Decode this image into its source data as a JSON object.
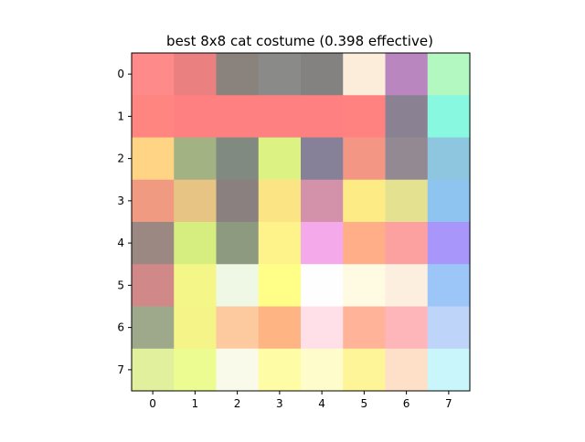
{
  "chart_data": {
    "type": "heatmap",
    "title": "best 8x8 cat costume (0.398 effective)",
    "xlabel": "",
    "ylabel": "",
    "x_ticks": [
      "0",
      "1",
      "2",
      "3",
      "4",
      "5",
      "6",
      "7"
    ],
    "y_ticks": [
      "0",
      "1",
      "2",
      "3",
      "4",
      "5",
      "6",
      "7"
    ],
    "grid": false,
    "legend": "none",
    "cells": [
      [
        "#ff8a8a",
        "#ea8080",
        "#8a827c",
        "#8a8a88",
        "#848280",
        "#fcecda",
        "#b986c0",
        "#b3f8c0"
      ],
      [
        "#ff8680",
        "#ff8080",
        "#ff8080",
        "#ff8080",
        "#ff8080",
        "#ff8280",
        "#8a8292",
        "#88f8e0"
      ],
      [
        "#ffd484",
        "#a3b283",
        "#808a80",
        "#dcf282",
        "#868098",
        "#f49684",
        "#928992",
        "#8ec6e0"
      ],
      [
        "#f09a82",
        "#e8c484",
        "#8a8080",
        "#fae484",
        "#d492aa",
        "#fdec86",
        "#e4e290",
        "#8ec4f0"
      ],
      [
        "#9c8882",
        "#d6ee80",
        "#8e9a80",
        "#fef28a",
        "#f4aaea",
        "#ffae88",
        "#fca0a0",
        "#a896fa"
      ],
      [
        "#d08888",
        "#f4f688",
        "#eef8e4",
        "#ffff88",
        "#fefefe",
        "#fffae2",
        "#fdefe0",
        "#9cc6f8"
      ],
      [
        "#9ea88a",
        "#f4f488",
        "#fcca9e",
        "#ffb484",
        "#ffe0e8",
        "#ffb49a",
        "#ffb6ba",
        "#bed4f8"
      ],
      [
        "#e0f09c",
        "#ecfc90",
        "#fafaea",
        "#fefca4",
        "#fefcca",
        "#fef498",
        "#fee0c8",
        "#c8f6fa"
      ]
    ]
  }
}
